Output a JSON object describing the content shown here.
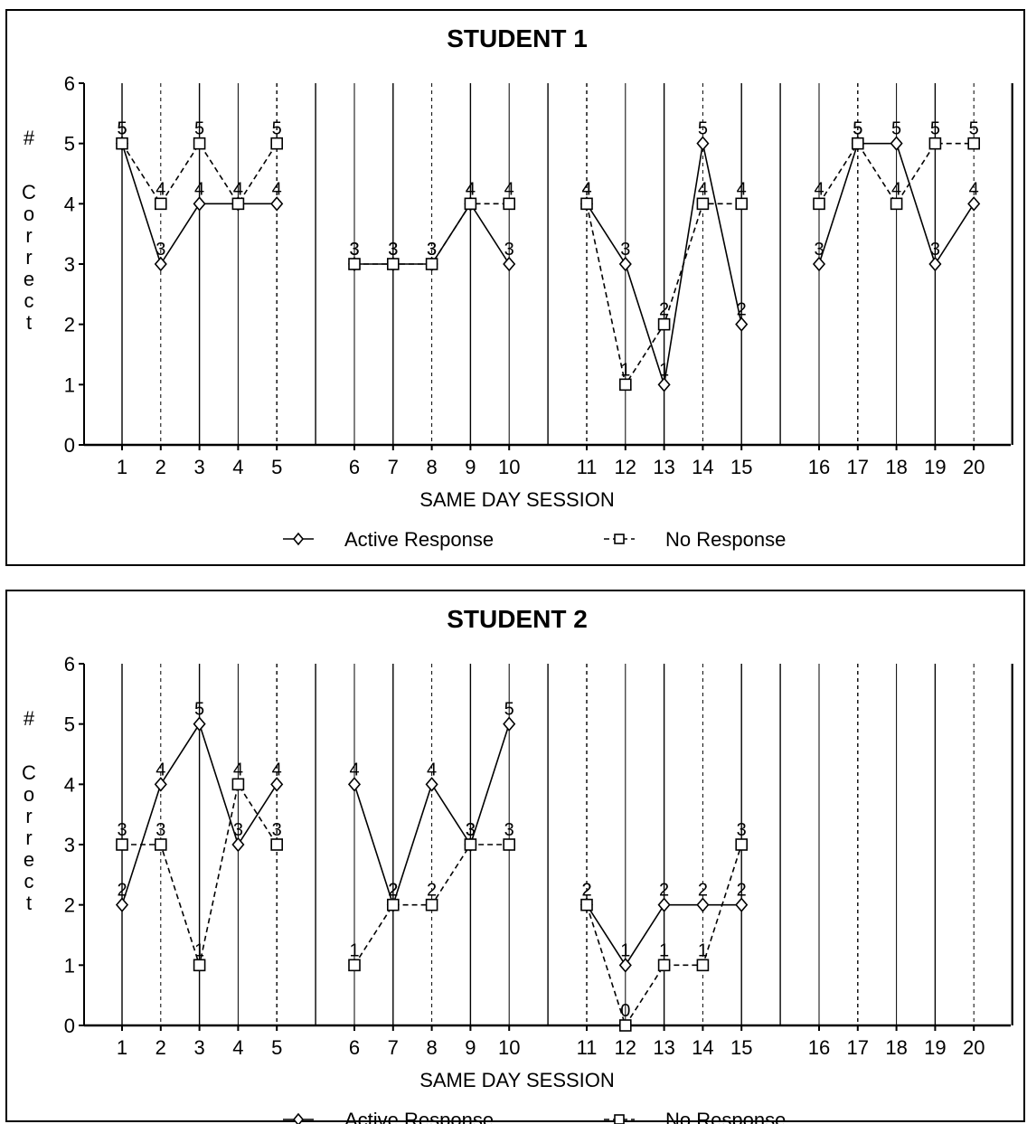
{
  "chart_data": [
    {
      "type": "line",
      "title": "STUDENT 1",
      "xlabel": "SAME DAY SESSION",
      "ylabel": "# Correct",
      "ylim": [
        0,
        6
      ],
      "yticks": [
        "0",
        "1",
        "2",
        "3",
        "4",
        "5",
        "6"
      ],
      "categories": [
        "1",
        "2",
        "3",
        "4",
        "5",
        "6",
        "7",
        "8",
        "9",
        "10",
        "11",
        "12",
        "13",
        "14",
        "15",
        "16",
        "17",
        "18",
        "19",
        "20"
      ],
      "legend_position": "bottom",
      "grid": true,
      "series": [
        {
          "name": "Active Response",
          "marker": "diamond",
          "line": "solid",
          "values": [
            5,
            3,
            4,
            4,
            4,
            3,
            3,
            3,
            4,
            3,
            4,
            3,
            1,
            5,
            2,
            3,
            5,
            5,
            3,
            4
          ]
        },
        {
          "name": "No Response",
          "marker": "square",
          "line": "dashed",
          "values": [
            5,
            4,
            5,
            4,
            5,
            3,
            3,
            3,
            4,
            4,
            4,
            1,
            2,
            4,
            4,
            4,
            5,
            4,
            5,
            5
          ]
        }
      ]
    },
    {
      "type": "line",
      "title": "STUDENT 2",
      "xlabel": "SAME DAY SESSION",
      "ylabel": "# Correct",
      "ylim": [
        0,
        6
      ],
      "yticks": [
        "0",
        "1",
        "2",
        "3",
        "4",
        "5",
        "6"
      ],
      "categories": [
        "1",
        "2",
        "3",
        "4",
        "5",
        "6",
        "7",
        "8",
        "9",
        "10",
        "11",
        "12",
        "13",
        "14",
        "15",
        "16",
        "17",
        "18",
        "19",
        "20"
      ],
      "legend_position": "bottom",
      "grid": true,
      "series": [
        {
          "name": "Active Response",
          "marker": "diamond",
          "line": "solid",
          "values": [
            2,
            4,
            5,
            3,
            4,
            4,
            2,
            4,
            3,
            5,
            2,
            1,
            2,
            2,
            2,
            null,
            null,
            null,
            null,
            null
          ]
        },
        {
          "name": "No Response",
          "marker": "square",
          "line": "dashed",
          "values": [
            3,
            3,
            1,
            4,
            3,
            1,
            2,
            2,
            3,
            3,
            2,
            0,
            1,
            1,
            3,
            null,
            null,
            null,
            null,
            null
          ]
        }
      ]
    }
  ]
}
